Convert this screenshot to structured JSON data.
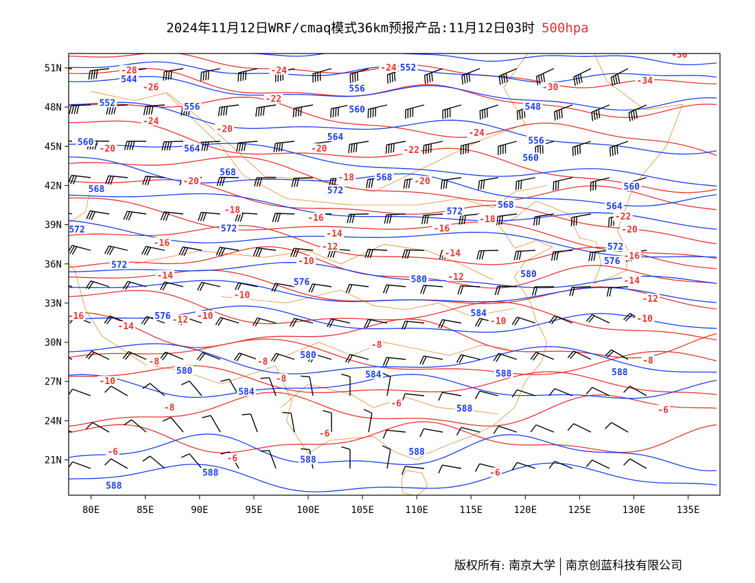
{
  "title": {
    "main": "2024年11月12日WRF/cmaq模式36km预报产品:11月12日03时",
    "level": "500hpa"
  },
  "map": {
    "lon_range": [
      78,
      138
    ],
    "lat_range": [
      18,
      52
    ],
    "x_ticks": [
      "80E",
      "85E",
      "90E",
      "95E",
      "100E",
      "105E",
      "110E",
      "115E",
      "120E",
      "125E",
      "130E",
      "135E"
    ],
    "y_ticks": [
      "51N",
      "48N",
      "45N",
      "42N",
      "39N",
      "36N",
      "33N",
      "30N",
      "27N",
      "24N",
      "21N"
    ],
    "colors": {
      "height": "#1a3cf0",
      "temperature": "#e8322e",
      "borders": "#e08a2e",
      "wind": "#000000"
    },
    "height_labels": [
      {
        "text": "544",
        "lon": 83.5,
        "lat": 50.1
      },
      {
        "text": "552",
        "lon": 81.5,
        "lat": 48.3
      },
      {
        "text": "556",
        "lon": 104.5,
        "lat": 49.4
      },
      {
        "text": "560",
        "lon": 104.5,
        "lat": 47.8
      },
      {
        "text": "548",
        "lon": 120.7,
        "lat": 48.0
      },
      {
        "text": "556",
        "lon": 89.3,
        "lat": 48.0
      },
      {
        "text": "560",
        "lon": 79.5,
        "lat": 45.3
      },
      {
        "text": "564",
        "lon": 89.3,
        "lat": 44.8
      },
      {
        "text": "564",
        "lon": 102.5,
        "lat": 45.7
      },
      {
        "text": "556",
        "lon": 121.0,
        "lat": 45.4
      },
      {
        "text": "560",
        "lon": 120.5,
        "lat": 44.1
      },
      {
        "text": "568",
        "lon": 80.5,
        "lat": 41.7
      },
      {
        "text": "568",
        "lon": 92.6,
        "lat": 43.0
      },
      {
        "text": "568",
        "lon": 107.0,
        "lat": 42.6
      },
      {
        "text": "572",
        "lon": 102.5,
        "lat": 41.6
      },
      {
        "text": "560",
        "lon": 129.8,
        "lat": 41.9
      },
      {
        "text": "564",
        "lon": 128.2,
        "lat": 40.4
      },
      {
        "text": "572",
        "lon": 113.5,
        "lat": 40.0
      },
      {
        "text": "568",
        "lon": 118.2,
        "lat": 40.5
      },
      {
        "text": "572",
        "lon": 78.7,
        "lat": 38.6
      },
      {
        "text": "572",
        "lon": 92.7,
        "lat": 38.7
      },
      {
        "text": "572",
        "lon": 82.6,
        "lat": 35.9
      },
      {
        "text": "572",
        "lon": 128.3,
        "lat": 37.3
      },
      {
        "text": "576",
        "lon": 128.0,
        "lat": 36.2
      },
      {
        "text": "576",
        "lon": 99.4,
        "lat": 34.6
      },
      {
        "text": "580",
        "lon": 110.2,
        "lat": 34.8
      },
      {
        "text": "580",
        "lon": 120.3,
        "lat": 35.2
      },
      {
        "text": "576",
        "lon": 86.6,
        "lat": 32.0
      },
      {
        "text": "584",
        "lon": 115.7,
        "lat": 32.2
      },
      {
        "text": "580",
        "lon": 100.0,
        "lat": 29.0
      },
      {
        "text": "580",
        "lon": 88.6,
        "lat": 27.8
      },
      {
        "text": "584",
        "lon": 94.3,
        "lat": 26.2
      },
      {
        "text": "584",
        "lon": 106.0,
        "lat": 27.5
      },
      {
        "text": "588",
        "lon": 118.0,
        "lat": 27.6
      },
      {
        "text": "588",
        "lon": 128.7,
        "lat": 27.7
      },
      {
        "text": "588",
        "lon": 114.4,
        "lat": 24.9
      },
      {
        "text": "588",
        "lon": 110.0,
        "lat": 21.6
      },
      {
        "text": "588",
        "lon": 100.0,
        "lat": 21.0
      },
      {
        "text": "588",
        "lon": 91.0,
        "lat": 20.0
      },
      {
        "text": "588",
        "lon": 82.1,
        "lat": 19.0
      },
      {
        "text": "552",
        "lon": 109.2,
        "lat": 51.0
      }
    ],
    "temp_labels": [
      {
        "text": "-28",
        "lon": 83.5,
        "lat": 50.8
      },
      {
        "text": "-26",
        "lon": 85.5,
        "lat": 49.5
      },
      {
        "text": "-24",
        "lon": 97.3,
        "lat": 50.8
      },
      {
        "text": "-24",
        "lon": 107.4,
        "lat": 51.0
      },
      {
        "text": "-22",
        "lon": 96.8,
        "lat": 48.6
      },
      {
        "text": "-24",
        "lon": 85.5,
        "lat": 46.9
      },
      {
        "text": "-20",
        "lon": 92.3,
        "lat": 46.3
      },
      {
        "text": "-30",
        "lon": 122.3,
        "lat": 49.5
      },
      {
        "text": "-34",
        "lon": 131.0,
        "lat": 50.0
      },
      {
        "text": "-36",
        "lon": 134.2,
        "lat": 52.0
      },
      {
        "text": "-24",
        "lon": 115.5,
        "lat": 46.0
      },
      {
        "text": "-22",
        "lon": 109.5,
        "lat": 44.7
      },
      {
        "text": "-20",
        "lon": 101.0,
        "lat": 44.8
      },
      {
        "text": "-20",
        "lon": 81.5,
        "lat": 44.8
      },
      {
        "text": "-20",
        "lon": 89.2,
        "lat": 42.3
      },
      {
        "text": "-18",
        "lon": 103.5,
        "lat": 42.6
      },
      {
        "text": "-20",
        "lon": 110.5,
        "lat": 42.3
      },
      {
        "text": "-18",
        "lon": 93.0,
        "lat": 40.1
      },
      {
        "text": "-16",
        "lon": 100.7,
        "lat": 39.5
      },
      {
        "text": "-16",
        "lon": 112.3,
        "lat": 38.7
      },
      {
        "text": "-18",
        "lon": 116.5,
        "lat": 39.4
      },
      {
        "text": "-22",
        "lon": 129.0,
        "lat": 39.6
      },
      {
        "text": "-20",
        "lon": 129.6,
        "lat": 38.6
      },
      {
        "text": "-16",
        "lon": 86.5,
        "lat": 37.6
      },
      {
        "text": "-14",
        "lon": 102.4,
        "lat": 38.3
      },
      {
        "text": "-12",
        "lon": 102.0,
        "lat": 37.3
      },
      {
        "text": "-14",
        "lon": 113.3,
        "lat": 36.8
      },
      {
        "text": "-16",
        "lon": 129.8,
        "lat": 36.6
      },
      {
        "text": "-10",
        "lon": 99.8,
        "lat": 36.2
      },
      {
        "text": "-14",
        "lon": 86.8,
        "lat": 35.1
      },
      {
        "text": "-12",
        "lon": 113.6,
        "lat": 35.0
      },
      {
        "text": "-14",
        "lon": 129.8,
        "lat": 34.7
      },
      {
        "text": "-12",
        "lon": 131.5,
        "lat": 33.3
      },
      {
        "text": "-10",
        "lon": 93.9,
        "lat": 33.6
      },
      {
        "text": "-16",
        "lon": 78.6,
        "lat": 32.0
      },
      {
        "text": "-14",
        "lon": 83.2,
        "lat": 31.2
      },
      {
        "text": "-12",
        "lon": 88.2,
        "lat": 31.7
      },
      {
        "text": "-10",
        "lon": 90.5,
        "lat": 32.0
      },
      {
        "text": "-10",
        "lon": 117.5,
        "lat": 31.6
      },
      {
        "text": "-10",
        "lon": 131.0,
        "lat": 31.8
      },
      {
        "text": "-8",
        "lon": 106.3,
        "lat": 29.8
      },
      {
        "text": "-8",
        "lon": 95.8,
        "lat": 28.5
      },
      {
        "text": "-8",
        "lon": 97.5,
        "lat": 27.2
      },
      {
        "text": "-8",
        "lon": 131.3,
        "lat": 28.6
      },
      {
        "text": "-10",
        "lon": 81.5,
        "lat": 27.0
      },
      {
        "text": "-8",
        "lon": 85.8,
        "lat": 28.5
      },
      {
        "text": "-8",
        "lon": 87.2,
        "lat": 25.0
      },
      {
        "text": "-6",
        "lon": 108.1,
        "lat": 25.3
      },
      {
        "text": "-6",
        "lon": 101.5,
        "lat": 23.0
      },
      {
        "text": "-6",
        "lon": 132.7,
        "lat": 24.8
      },
      {
        "text": "-6",
        "lon": 82.0,
        "lat": 21.6
      },
      {
        "text": "-6",
        "lon": 93.0,
        "lat": 21.1
      },
      {
        "text": "-6",
        "lon": 117.2,
        "lat": 20.0
      }
    ]
  },
  "footer": {
    "copyright": "版权所有: 南京大学",
    "company": "南京创蓝科技有限公司"
  }
}
